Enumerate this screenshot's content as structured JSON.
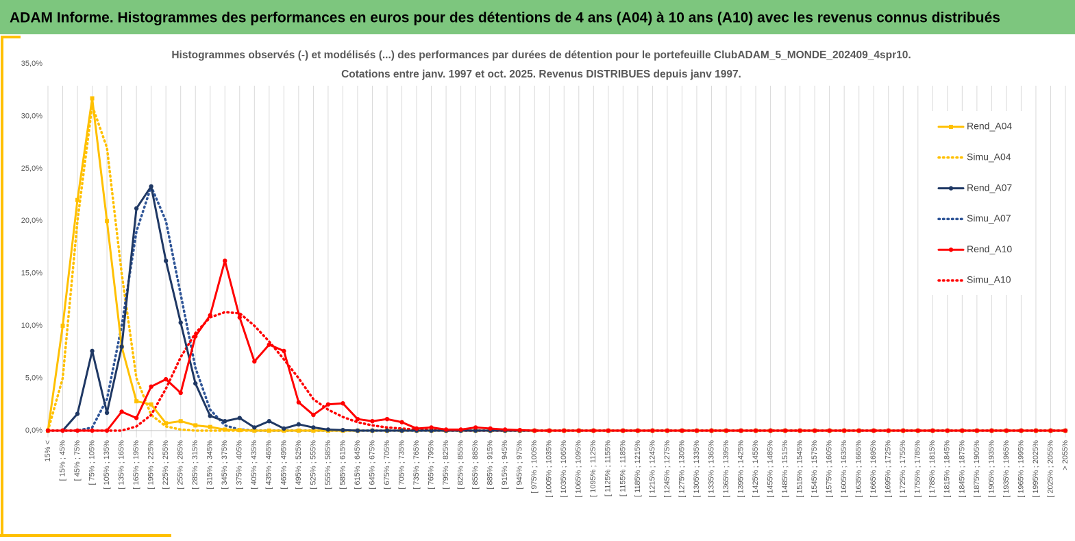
{
  "page_title": "ADAM Informe. Histogrammes des performances en euros pour des détentions de 4 ans (A04) à 10 ans (A10) avec les revenus connus distribués",
  "chart_data": {
    "type": "line",
    "title": "Histogrammes observés (-) et modélisés (...) des performances par durées de détention pour le portefeuille ClubADAM_5_MONDE_202409_4spr10.",
    "subtitle": "Cotations entre janv. 1997 et oct. 2025. Revenus DISTRIBUES depuis janv 1997.",
    "categories": [
      "15% <",
      "[ 15% ; 45%",
      "[ 45% ; 75%",
      "[ 75% ; 105%",
      "[ 105% ; 135%",
      "[ 135% ; 165%",
      "[ 165% ; 195%",
      "[ 195% ; 225%",
      "[ 225% ; 255%",
      "[ 255% ; 285%",
      "[ 285% ; 315%",
      "[ 315% ; 345%",
      "[ 345% ; 375%",
      "[ 375% ; 405%",
      "[ 405% ; 435%",
      "[ 435% ; 465%",
      "[ 465% ; 495%",
      "[ 495% ; 525%",
      "[ 525% ; 555%",
      "[ 555% ; 585%",
      "[ 585% ; 615%",
      "[ 615% ; 645%",
      "[ 645% ; 675%",
      "[ 675% ; 705%",
      "[ 705% ; 735%",
      "[ 735% ; 765%",
      "[ 765% ; 795%",
      "[ 795% ; 825%",
      "[ 825% ; 855%",
      "[ 855% ; 885%",
      "[ 885% ; 915%",
      "[ 915% ; 945%",
      "[ 945% ; 975%",
      "[ 975% ; 1005%",
      "[ 1005% ; 1035%",
      "[ 1035% ; 1065%",
      "[ 1065% ; 1095%",
      "[ 1095% ; 1125%",
      "[ 1125% ; 1155%",
      "[ 1155% ; 1185%",
      "[ 1185% ; 1215%",
      "[ 1215% ; 1245%",
      "[ 1245% ; 1275%",
      "[ 1275% ; 1305%",
      "[ 1305% ; 1335%",
      "[ 1335% ; 1365%",
      "[ 1365% ; 1395%",
      "[ 1395% ; 1425%",
      "[ 1425% ; 1455%",
      "[ 1455% ; 1485%",
      "[ 1485% ; 1515%",
      "[ 1515% ; 1545%",
      "[ 1545% ; 1575%",
      "[ 1575% ; 1605%",
      "[ 1605% ; 1635%",
      "[ 1635% ; 1665%",
      "[ 1665% ; 1695%",
      "[ 1695% ; 1725%",
      "[ 1725% ; 1755%",
      "[ 1755% ; 1785%",
      "[ 1785% ; 1815%",
      "[ 1815% ; 1845%",
      "[ 1845% ; 1875%",
      "[ 1875% ; 1905%",
      "[ 1905% ; 1935%",
      "[ 1935% ; 1965%",
      "[ 1965% ; 1995%",
      "[ 1995% ; 2025%",
      "[ 2025% ; 2055%",
      "> 2055%"
    ],
    "ylim": [
      0,
      35
    ],
    "yticks": [
      {
        "value": 0,
        "label": "0,0%"
      },
      {
        "value": 5,
        "label": "5,0%"
      },
      {
        "value": 10,
        "label": "10,0%"
      },
      {
        "value": 15,
        "label": "15,0%"
      },
      {
        "value": 20,
        "label": "20,0%"
      },
      {
        "value": 25,
        "label": "25,0%"
      },
      {
        "value": 30,
        "label": "30,0%"
      },
      {
        "value": 35,
        "label": "35,0%"
      }
    ],
    "grid": "x",
    "legend": "right",
    "series": [
      {
        "name": "Rend_A04",
        "color": "#FFC000",
        "style": "solid",
        "marker": "square",
        "values": [
          0,
          10,
          22,
          31.7,
          20,
          8,
          2.8,
          2.5,
          0.7,
          0.9,
          0.5,
          0.35,
          0.1,
          0.05,
          0,
          0,
          0,
          0,
          0,
          0,
          0,
          0,
          0,
          0,
          0,
          0,
          0,
          0,
          0,
          0,
          0,
          0,
          0,
          0,
          0,
          0,
          0,
          0,
          0,
          0,
          0,
          0,
          0,
          0,
          0,
          0,
          0,
          0,
          0,
          0,
          0,
          0,
          0,
          0,
          0,
          0,
          0,
          0,
          0,
          0,
          0,
          0,
          0,
          0,
          0,
          0,
          0,
          0,
          0,
          0
        ]
      },
      {
        "name": "Simu_A04",
        "color": "#FFC000",
        "style": "dotted",
        "marker": "none",
        "values": [
          0,
          5,
          20,
          31,
          27,
          15,
          5,
          1.5,
          0.4,
          0.1,
          0,
          0,
          0,
          0,
          0,
          0,
          0,
          0,
          0,
          0,
          0,
          0,
          0,
          0,
          0,
          0,
          0,
          0,
          0,
          0,
          0,
          0,
          0,
          0,
          0,
          0,
          0,
          0,
          0,
          0,
          0,
          0,
          0,
          0,
          0,
          0,
          0,
          0,
          0,
          0,
          0,
          0,
          0,
          0,
          0,
          0,
          0,
          0,
          0,
          0,
          0,
          0,
          0,
          0,
          0,
          0,
          0,
          0,
          0,
          0
        ]
      },
      {
        "name": "Rend_A07",
        "color": "#1F3864",
        "style": "solid",
        "marker": "circle",
        "values": [
          0,
          0,
          1.6,
          7.6,
          1.7,
          8,
          21.2,
          23.3,
          16.2,
          10.3,
          4.5,
          1.4,
          0.9,
          1.2,
          0.3,
          0.9,
          0.2,
          0.6,
          0.3,
          0.1,
          0.05,
          0,
          0,
          0,
          0,
          0,
          0,
          0,
          0,
          0,
          0,
          0,
          0,
          0,
          0,
          0,
          0,
          0,
          0,
          0,
          0,
          0,
          0,
          0,
          0,
          0,
          0,
          0,
          0,
          0,
          0,
          0,
          0,
          0,
          0,
          0,
          0,
          0,
          0,
          0,
          0,
          0,
          0,
          0,
          0,
          0,
          0,
          0,
          0,
          0
        ]
      },
      {
        "name": "Simu_A07",
        "color": "#2F5597",
        "style": "dotted",
        "marker": "none",
        "values": [
          0,
          0,
          0,
          0.3,
          3,
          10,
          19,
          23.3,
          20,
          13,
          6,
          2,
          0.5,
          0.1,
          0,
          0,
          0,
          0,
          0,
          0,
          0,
          0,
          0,
          0,
          0,
          0,
          0,
          0,
          0,
          0,
          0,
          0,
          0,
          0,
          0,
          0,
          0,
          0,
          0,
          0,
          0,
          0,
          0,
          0,
          0,
          0,
          0,
          0,
          0,
          0,
          0,
          0,
          0,
          0,
          0,
          0,
          0,
          0,
          0,
          0,
          0,
          0,
          0,
          0,
          0,
          0,
          0,
          0,
          0,
          0
        ]
      },
      {
        "name": "Rend_A10",
        "color": "#FF0000",
        "style": "solid",
        "marker": "circle",
        "values": [
          0,
          0,
          0,
          0,
          0,
          1.8,
          1.2,
          4.2,
          4.9,
          3.6,
          9,
          11,
          16.2,
          10.8,
          6.6,
          8.2,
          7.6,
          2.7,
          1.5,
          2.5,
          2.6,
          1.1,
          0.9,
          1.1,
          0.8,
          0.2,
          0.3,
          0.1,
          0.1,
          0.3,
          0.2,
          0.1,
          0.05,
          0,
          0,
          0,
          0,
          0,
          0,
          0,
          0,
          0,
          0,
          0,
          0,
          0,
          0,
          0,
          0,
          0,
          0,
          0,
          0,
          0,
          0,
          0,
          0,
          0,
          0,
          0,
          0,
          0,
          0,
          0,
          0,
          0,
          0,
          0,
          0,
          0
        ]
      },
      {
        "name": "Simu_A10",
        "color": "#FF0000",
        "style": "dotted",
        "marker": "none",
        "values": [
          0,
          0,
          0,
          0,
          0,
          0,
          0.4,
          1.5,
          4,
          7,
          9.3,
          10.8,
          11.3,
          11.2,
          10,
          8.5,
          6.8,
          5,
          3,
          2,
          1.3,
          0.8,
          0.5,
          0.3,
          0.2,
          0.1,
          0.05,
          0,
          0,
          0,
          0,
          0,
          0,
          0,
          0,
          0,
          0,
          0,
          0,
          0,
          0,
          0,
          0,
          0,
          0,
          0,
          0,
          0,
          0,
          0,
          0,
          0,
          0,
          0,
          0,
          0,
          0,
          0,
          0,
          0,
          0,
          0,
          0,
          0,
          0,
          0,
          0,
          0,
          0,
          0
        ]
      }
    ]
  }
}
